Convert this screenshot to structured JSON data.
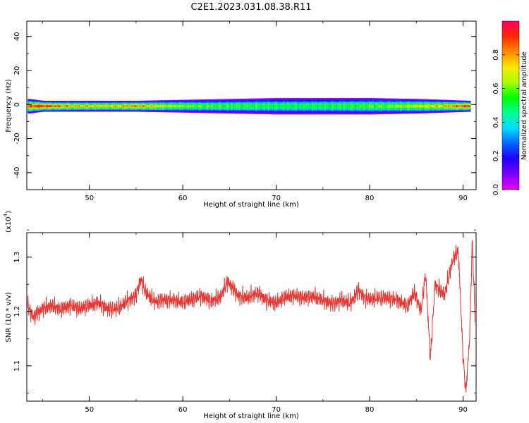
{
  "title": "C2E1.2023.031.08.38.R11",
  "colors": {
    "line": "#e8332f",
    "background": "#ffffff",
    "axes": "#000000"
  },
  "chart_data": [
    {
      "type": "heatmap",
      "xlabel": "Height of straight line (km)",
      "ylabel": "Frequency (Hz)",
      "xlim": [
        43.3,
        91.4
      ],
      "ylim": [
        -50,
        49
      ],
      "xticks": [
        50,
        60,
        70,
        80,
        90
      ],
      "yticks": [
        -40,
        -20,
        0,
        20,
        40
      ],
      "colorbar": {
        "label": "Normalized spectral amplitude",
        "range": [
          0.0,
          1.0
        ],
        "ticks": [
          0.0,
          0.2,
          0.4,
          0.6,
          0.8
        ],
        "colormap": [
          "#e600ff",
          "#7c00ff",
          "#1e00ff",
          "#0064ff",
          "#00dcff",
          "#00ff96",
          "#00ff00",
          "#aaff00",
          "#ffe600",
          "#ff8c00",
          "#ff2800",
          "#ff0064"
        ]
      },
      "band": {
        "center_frequency_hz": -1,
        "halfwidth_hz": [
          [
            43.5,
            4
          ],
          [
            45,
            3
          ],
          [
            50,
            3
          ],
          [
            55,
            3
          ],
          [
            60,
            3.5
          ],
          [
            65,
            4
          ],
          [
            70,
            4.5
          ],
          [
            75,
            4.5
          ],
          [
            80,
            4.5
          ],
          [
            85,
            4
          ],
          [
            88,
            3.5
          ],
          [
            90.6,
            3
          ]
        ],
        "peak_amplitude": [
          [
            43.5,
            0.85
          ],
          [
            44.5,
            0.98
          ],
          [
            46,
            0.9
          ],
          [
            48,
            0.8
          ],
          [
            52,
            0.75
          ],
          [
            55,
            0.85
          ],
          [
            58,
            0.7
          ],
          [
            62,
            0.6
          ],
          [
            66,
            0.58
          ],
          [
            70,
            0.55
          ],
          [
            74,
            0.55
          ],
          [
            78,
            0.58
          ],
          [
            82,
            0.62
          ],
          [
            86,
            0.72
          ],
          [
            88,
            0.78
          ],
          [
            90.4,
            0.92
          ]
        ]
      }
    },
    {
      "type": "line",
      "xlabel": "Height of straight line (km)",
      "ylabel": "SNR (10 * v/v)",
      "y_multiplier_label": "(x10",
      "y_multiplier_exponent": "4",
      "y_multiplier_close": ")",
      "xlim": [
        43.3,
        91.4
      ],
      "ylim": [
        1.035,
        1.345
      ],
      "xticks": [
        50,
        60,
        70,
        80,
        90
      ],
      "yticks": [
        1.1,
        1.2,
        1.3
      ],
      "ytick_labels": [
        "1.1",
        "1.2",
        "1.3"
      ],
      "series": [
        {
          "x": [
            43.4,
            44,
            45,
            46,
            47,
            48,
            49,
            50,
            51,
            52,
            53,
            54,
            55,
            55.5,
            56,
            57,
            58,
            59,
            60,
            61,
            62,
            63,
            64,
            64.8,
            65.5,
            66,
            67,
            68,
            69,
            70,
            71,
            72,
            73,
            74,
            75,
            76,
            77,
            78,
            78.8,
            79.5,
            80,
            81,
            82,
            83,
            84,
            84.8,
            85.5,
            86,
            86.5,
            87,
            88,
            89,
            89.5,
            90,
            90.3,
            90.7,
            91,
            91.3
          ],
          "y": [
            1.21,
            1.19,
            1.205,
            1.21,
            1.205,
            1.21,
            1.205,
            1.212,
            1.215,
            1.205,
            1.205,
            1.218,
            1.23,
            1.26,
            1.235,
            1.218,
            1.222,
            1.22,
            1.218,
            1.222,
            1.228,
            1.22,
            1.225,
            1.255,
            1.24,
            1.228,
            1.225,
            1.235,
            1.22,
            1.215,
            1.228,
            1.228,
            1.225,
            1.228,
            1.22,
            1.215,
            1.22,
            1.215,
            1.24,
            1.225,
            1.222,
            1.225,
            1.225,
            1.22,
            1.21,
            1.235,
            1.2,
            1.27,
            1.11,
            1.25,
            1.23,
            1.3,
            1.31,
            1.12,
            1.05,
            1.15,
            1.33,
            1.18
          ]
        }
      ]
    }
  ]
}
